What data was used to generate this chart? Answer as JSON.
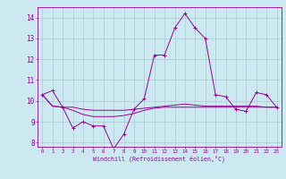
{
  "xlabel": "Windchill (Refroidissement éolien,°C)",
  "background_color": "#cce8f0",
  "grid_color": "#aacccc",
  "line_color": "#990099",
  "x": [
    0,
    1,
    2,
    3,
    4,
    5,
    6,
    7,
    8,
    9,
    10,
    11,
    12,
    13,
    14,
    15,
    16,
    17,
    18,
    19,
    20,
    21,
    22,
    23
  ],
  "series1": [
    10.3,
    10.5,
    9.7,
    8.7,
    9.0,
    8.8,
    8.8,
    7.7,
    8.4,
    9.6,
    10.1,
    12.2,
    12.2,
    13.5,
    14.2,
    13.5,
    13.0,
    10.3,
    10.2,
    9.6,
    9.5,
    10.4,
    10.3,
    9.7
  ],
  "series2": [
    10.3,
    9.75,
    9.7,
    9.7,
    9.6,
    9.55,
    9.55,
    9.55,
    9.55,
    9.6,
    9.65,
    9.7,
    9.75,
    9.8,
    9.85,
    9.8,
    9.75,
    9.75,
    9.75,
    9.75,
    9.75,
    9.75,
    9.7,
    9.7
  ],
  "series3": [
    10.3,
    9.75,
    9.7,
    9.55,
    9.35,
    9.25,
    9.25,
    9.25,
    9.3,
    9.4,
    9.55,
    9.65,
    9.7,
    9.7,
    9.7,
    9.7,
    9.7,
    9.7,
    9.7,
    9.7,
    9.7,
    9.7,
    9.7,
    9.7
  ],
  "ylim": [
    7.8,
    14.5
  ],
  "xlim": [
    -0.5,
    23.5
  ],
  "yticks": [
    8,
    9,
    10,
    11,
    12,
    13,
    14
  ],
  "xticks": [
    0,
    1,
    2,
    3,
    4,
    5,
    6,
    7,
    8,
    9,
    10,
    11,
    12,
    13,
    14,
    15,
    16,
    17,
    18,
    19,
    20,
    21,
    22,
    23
  ]
}
